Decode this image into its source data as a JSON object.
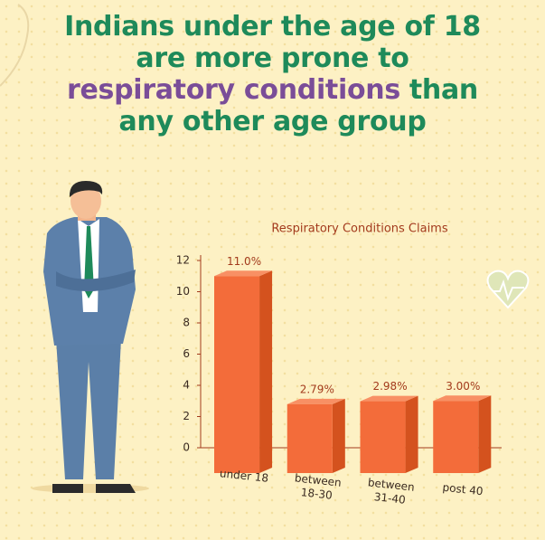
{
  "chart_data": {
    "type": "bar",
    "headline": [
      [
        {
          "text": "Indians under the age of 18",
          "color": "#1e8a5a"
        }
      ],
      [
        {
          "text": "are more prone to",
          "color": "#1e8a5a"
        }
      ],
      [
        {
          "text": "respiratory conditions",
          "color": "#7a4d98"
        },
        {
          "text": "than",
          "color": "#1e8a5a"
        }
      ],
      [
        {
          "text": "any other age group",
          "color": "#1e8a5a"
        }
      ]
    ],
    "title": "Respiratory Conditions Claims",
    "categories": [
      "under 18",
      "between 18-30",
      "between 31-40",
      "post 40"
    ],
    "values": [
      11.0,
      2.79,
      2.98,
      3.0
    ],
    "value_labels": [
      "11.0%",
      "2.79%",
      "2.98%",
      "3.00%"
    ],
    "color": "#f36c3a",
    "ylim": [
      0,
      12
    ],
    "yticks": [
      0,
      2,
      4,
      6,
      8,
      10,
      12
    ]
  }
}
